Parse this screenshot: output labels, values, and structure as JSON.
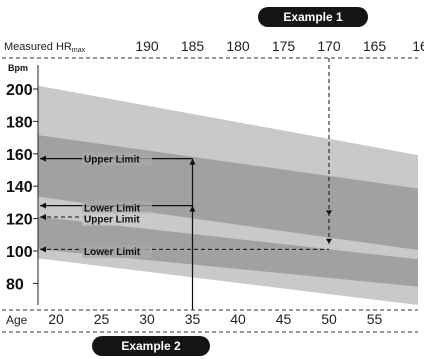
{
  "chart_data": {
    "type": "area",
    "title": "",
    "top_axis": {
      "label_main": "Measured HR",
      "label_sub": "max",
      "ticks": [
        "190",
        "185",
        "180",
        "175",
        "170",
        "165",
        "16"
      ]
    },
    "x_axis": {
      "label": "Age",
      "ticks": [
        "20",
        "25",
        "30",
        "35",
        "40",
        "45",
        "50",
        "55"
      ],
      "range": [
        20,
        58
      ]
    },
    "y_axis": {
      "unit": "Bpm",
      "ticks": [
        "200",
        "180",
        "160",
        "140",
        "120",
        "100",
        "80"
      ],
      "range": [
        70,
        205
      ]
    },
    "bands": [
      {
        "name": "outer",
        "color": "#c9c9c9",
        "upper": [
          [
            20,
            200
          ],
          [
            58,
            161
          ]
        ],
        "lower": [
          [
            20,
            94
          ],
          [
            58,
            66
          ]
        ]
      },
      {
        "name": "upper-zone",
        "color": "#9a9a9a",
        "upper": [
          [
            20,
            170
          ],
          [
            58,
            140
          ]
        ],
        "lower": [
          [
            20,
            132
          ],
          [
            58,
            102
          ]
        ]
      },
      {
        "name": "lower-zone",
        "color": "#9a9a9a",
        "upper": [
          [
            20,
            120
          ],
          [
            58,
            96
          ]
        ],
        "lower": [
          [
            20,
            100
          ],
          [
            58,
            79
          ]
        ]
      }
    ],
    "annotations": [
      {
        "text": "Upper Limit",
        "x": 35,
        "y": 158
      },
      {
        "text": "Lower Limit",
        "x": 35,
        "y": 128
      },
      {
        "text": "Upper Limit",
        "x": 20,
        "y": 121
      },
      {
        "text": "Lower Limit",
        "x": 50,
        "y": 102
      }
    ],
    "examples": [
      {
        "label": "Example 1",
        "hrmax": 170,
        "y_values": [
          122,
          102
        ]
      },
      {
        "label": "Example 2",
        "age": 35,
        "y_values": [
          158,
          128
        ]
      }
    ]
  }
}
